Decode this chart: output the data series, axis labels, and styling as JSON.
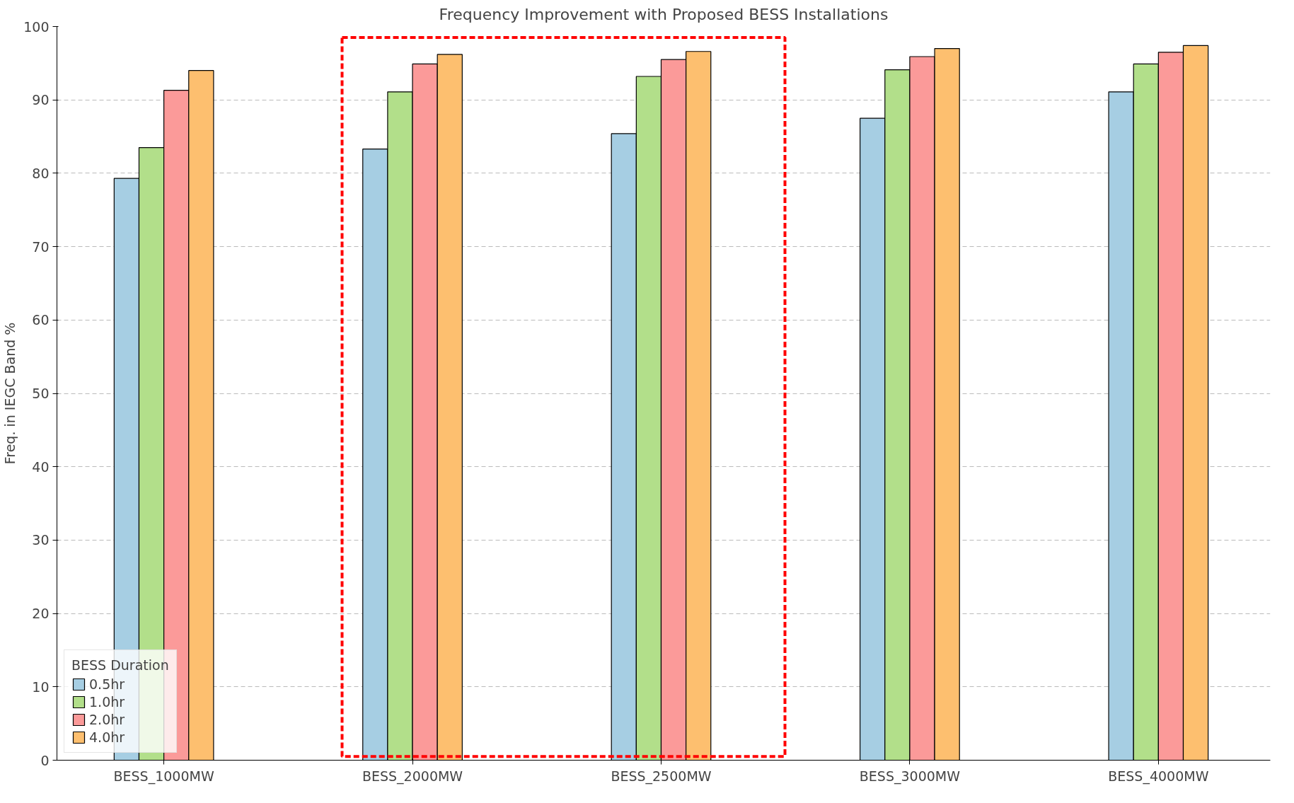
{
  "chart_data": {
    "type": "bar",
    "title": "Frequency Improvement with Proposed BESS Installations",
    "ylabel": "Freq. in IEGC Band %",
    "legend_title": "BESS Duration",
    "categories": [
      "BESS_1000MW",
      "BESS_2000MW",
      "BESS_2500MW",
      "BESS_3000MW",
      "BESS_4000MW"
    ],
    "series": [
      {
        "name": "0.5hr",
        "color": "#a6cee3",
        "values": [
          79.3,
          83.3,
          85.4,
          87.5,
          91.1
        ]
      },
      {
        "name": "1.0hr",
        "color": "#b2df8a",
        "values": [
          83.5,
          91.1,
          93.2,
          94.1,
          94.9
        ]
      },
      {
        "name": "2.0hr",
        "color": "#fb9a99",
        "values": [
          91.3,
          94.9,
          95.5,
          95.9,
          96.5
        ]
      },
      {
        "name": "4.0hr",
        "color": "#fdbf6f",
        "values": [
          94.0,
          96.2,
          96.6,
          97.0,
          97.4
        ]
      }
    ],
    "ylim": [
      0,
      100
    ],
    "yticks": [
      0,
      10,
      20,
      30,
      40,
      50,
      60,
      70,
      80,
      90,
      100
    ],
    "grid": "y",
    "legend": "bottom left"
  }
}
